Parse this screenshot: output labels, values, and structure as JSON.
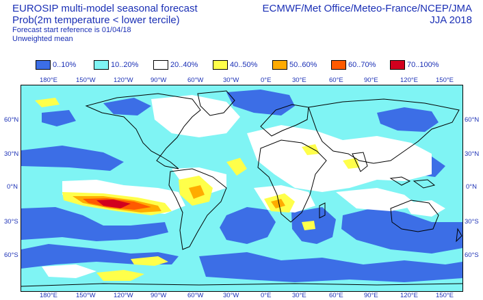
{
  "header": {
    "title_line1": "EUROSIP multi-model seasonal forecast",
    "title_line2": "Prob(2m temperature < lower tercile)",
    "subtitle1": "Forecast start reference is 01/04/18",
    "subtitle2": "Unweighted mean",
    "agencies": "ECMWF/Met Office/Meteo-France/NCEP/JMA",
    "season": "JJA 2018"
  },
  "legend": [
    {
      "label": "0..10%",
      "color": "#3c6ee6"
    },
    {
      "label": "10..20%",
      "color": "#7ff4f4"
    },
    {
      "label": "20..40%",
      "color": "#ffffff"
    },
    {
      "label": "40..50%",
      "color": "#ffff4a"
    },
    {
      "label": "50..60%",
      "color": "#ffab00"
    },
    {
      "label": "60..70%",
      "color": "#ff5a00"
    },
    {
      "label": "70..100%",
      "color": "#d2001e"
    }
  ],
  "map": {
    "lon_labels": [
      "180°E",
      "150°W",
      "120°W",
      "90°W",
      "60°W",
      "30°W",
      "0°E",
      "30°E",
      "60°E",
      "90°E",
      "120°E",
      "150°E"
    ],
    "lat_labels_left": [
      "60°N",
      "30°N",
      "0°N",
      "30°S",
      "60°S"
    ],
    "lat_labels_right": [
      "60°N",
      "30°N",
      "0°N",
      "30°S",
      "60°S"
    ],
    "colors": {
      "ocean_base": "#7ff4f4",
      "low": "#3c6ee6",
      "neutral": "#ffffff",
      "yellow": "#ffff4a",
      "orange": "#ffab00",
      "redorange": "#ff5a00",
      "red": "#d2001e"
    }
  }
}
